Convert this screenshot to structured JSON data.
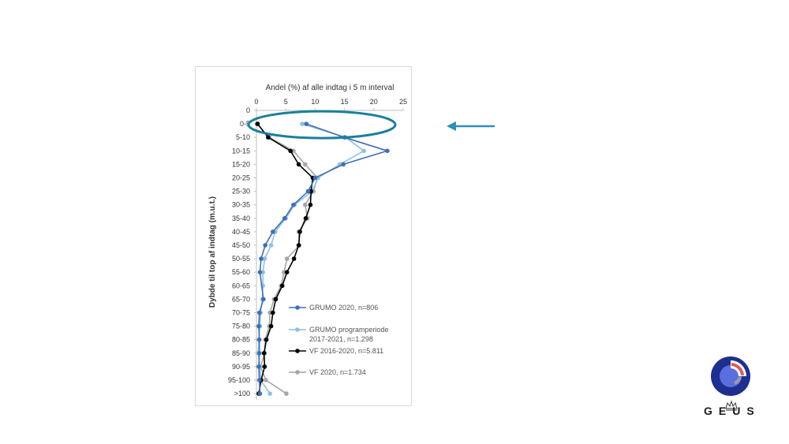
{
  "chart_data": {
    "type": "line",
    "title": "Andel (%) af alle indtag i 5 m interval",
    "ylabel": "Dybde til top af indtag (m.u.t.)",
    "xlim": [
      0,
      25
    ],
    "x_ticks": [
      "0",
      "5",
      "10",
      "15",
      "20",
      "25"
    ],
    "categories": [
      "0",
      "0-5",
      "5-10",
      "10-15",
      "15-20",
      "20-25",
      "25-30",
      "30-35",
      "35-40",
      "40-45",
      "45-50",
      "50-55",
      "55-60",
      "60-65",
      "65-70",
      "70-75",
      "75-80",
      "80-85",
      "85-90",
      "90-95",
      "95-100",
      ">100"
    ],
    "orientation": "horizontal-profile",
    "legend_position": "lower-right",
    "grid": false,
    "series": [
      {
        "name": "GRUMO 2020, n=806",
        "color": "#3f6fb5",
        "values": [
          null,
          8.5,
          15,
          22.3,
          14.8,
          10,
          8.8,
          6.3,
          4.8,
          2.8,
          1.5,
          0.8,
          0.6,
          null,
          1.2,
          0.5,
          0.4,
          0.5,
          0.5,
          0.4,
          0.5,
          0.6
        ]
      },
      {
        "name": "GRUMO programperiode 2017-2021, n=1.298",
        "color": "#8fc0e3",
        "values": [
          null,
          7.8,
          15.2,
          18.3,
          14.2,
          10.5,
          9.5,
          6.5,
          5.0,
          3.2,
          2.5,
          1.4,
          1.1,
          1.1,
          1.0,
          0.7,
          0.6,
          0.4,
          0.3,
          0.6,
          0.7,
          2.3
        ]
      },
      {
        "name": "VF 2016-2020, n=5.811",
        "color": "#000000",
        "values": [
          null,
          0.2,
          2.0,
          5.8,
          7.2,
          9.6,
          9.3,
          9.2,
          8.4,
          7.4,
          7.2,
          6.4,
          5.2,
          4.4,
          3.3,
          2.8,
          2.5,
          1.7,
          1.3,
          1.4,
          0.8,
          0.4
        ]
      },
      {
        "name": "VF 2020, n=1.734",
        "color": "#a6a6a6",
        "values": [
          null,
          0.1,
          2.2,
          6.3,
          8.3,
          10.4,
          9.7,
          8.3,
          8.7,
          7.2,
          7.3,
          5.2,
          4.7,
          4.2,
          3.0,
          2.3,
          2.2,
          1.5,
          1.4,
          0.7,
          1.6,
          5.1
        ]
      }
    ]
  },
  "logo": {
    "text": "GEUS",
    "primary_color": "#1f2f8f",
    "accent_color": "#e05a5a",
    "gray_color": "#9b9b9b"
  },
  "annotation": {
    "highlight_row": "0-5",
    "ellipse_color": "#1a7fa0",
    "arrow_color": "#2f8fbf"
  }
}
